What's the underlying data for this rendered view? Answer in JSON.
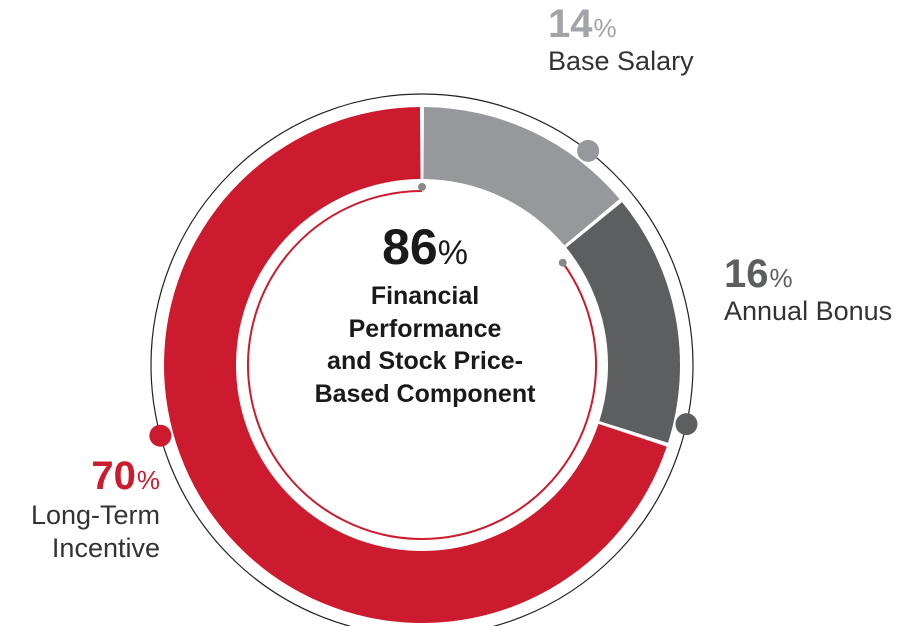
{
  "chart_data": {
    "type": "pie",
    "style": "donut",
    "slices": [
      {
        "label": "Base Salary",
        "value": 14,
        "color": "#97989b"
      },
      {
        "label": "Annual Bonus",
        "value": 16,
        "color": "#5d5e60"
      },
      {
        "label": "Long-Term Incentive",
        "value": 70,
        "color": "#cc1b2e"
      }
    ],
    "center": {
      "value": 86,
      "text": [
        "Financial",
        "Performance",
        "and Stock Price-",
        "Based Component"
      ],
      "color": "#cc1b2e"
    }
  },
  "labels": {
    "percent_sign": "%",
    "base_salary": {
      "value": "14",
      "name": "Base Salary",
      "color": "#a3a4a7"
    },
    "annual_bonus": {
      "value": "16",
      "name": "Annual Bonus",
      "color": "#5d5e60"
    },
    "long_term": {
      "value": "70",
      "name_line1": "Long-Term",
      "name_line2": "Incentive",
      "color": "#cc1b2e"
    }
  }
}
